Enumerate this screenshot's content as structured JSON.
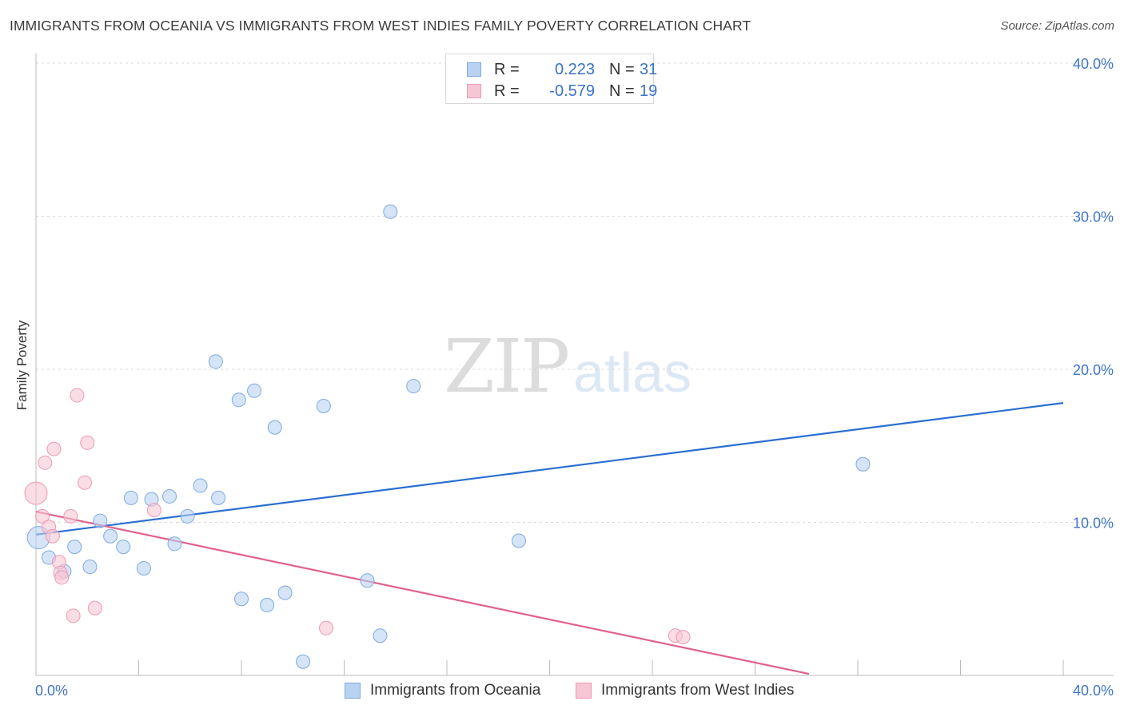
{
  "chart_data": {
    "type": "scatter",
    "title": "IMMIGRANTS FROM OCEANIA VS IMMIGRANTS FROM WEST INDIES FAMILY POVERTY CORRELATION CHART",
    "source": "Source: ZipAtlas.com",
    "ylabel": "Family Poverty",
    "xlabel": "",
    "xlim": [
      0,
      40
    ],
    "ylim": [
      0,
      40
    ],
    "x_tick_labels": [
      "0.0%",
      "40.0%"
    ],
    "y_ticks": [
      10,
      20,
      30,
      40
    ],
    "y_tick_labels": [
      "10.0%",
      "20.0%",
      "30.0%",
      "40.0%"
    ],
    "grid": true,
    "watermark": {
      "part1": "ZIP",
      "part2": "atlas"
    },
    "legend_stats": [
      {
        "r_label": "R =",
        "r_value": "0.223",
        "n_label": "N =",
        "n_value": "31"
      },
      {
        "r_label": "R =",
        "r_value": "-0.579",
        "n_label": "N =",
        "n_value": "19"
      }
    ],
    "series": [
      {
        "name": "Immigrants from Oceania",
        "fill": "#b9d2f2",
        "stroke": "#7eaae0",
        "line_color": "#2a6fd1",
        "trend": {
          "x0": 0,
          "y0": 9.2,
          "x1": 40,
          "y1": 17.8
        },
        "points": [
          {
            "x": 0.1,
            "y": 9.0,
            "big": true
          },
          {
            "x": 0.5,
            "y": 7.7
          },
          {
            "x": 1.1,
            "y": 6.8
          },
          {
            "x": 1.5,
            "y": 8.4
          },
          {
            "x": 2.1,
            "y": 7.1
          },
          {
            "x": 2.5,
            "y": 10.1
          },
          {
            "x": 2.9,
            "y": 9.1
          },
          {
            "x": 3.4,
            "y": 8.4
          },
          {
            "x": 3.7,
            "y": 11.6
          },
          {
            "x": 4.2,
            "y": 7.0
          },
          {
            "x": 4.5,
            "y": 11.5
          },
          {
            "x": 5.2,
            "y": 11.7
          },
          {
            "x": 5.4,
            "y": 8.6
          },
          {
            "x": 5.9,
            "y": 10.4
          },
          {
            "x": 6.4,
            "y": 12.4
          },
          {
            "x": 7.0,
            "y": 20.5
          },
          {
            "x": 7.1,
            "y": 11.6
          },
          {
            "x": 7.9,
            "y": 18.0
          },
          {
            "x": 8.0,
            "y": 5.0
          },
          {
            "x": 8.5,
            "y": 18.6
          },
          {
            "x": 9.0,
            "y": 4.6
          },
          {
            "x": 9.3,
            "y": 16.2
          },
          {
            "x": 9.7,
            "y": 5.4
          },
          {
            "x": 10.4,
            "y": 0.9
          },
          {
            "x": 11.2,
            "y": 17.6
          },
          {
            "x": 12.9,
            "y": 6.2
          },
          {
            "x": 13.4,
            "y": 2.6
          },
          {
            "x": 13.8,
            "y": 30.3
          },
          {
            "x": 14.7,
            "y": 18.9
          },
          {
            "x": 18.8,
            "y": 8.8
          },
          {
            "x": 32.2,
            "y": 13.8
          }
        ]
      },
      {
        "name": "Immigrants from West Indies",
        "fill": "#f7c6d4",
        "stroke": "#ee9ab3",
        "line_color": "#e0618e",
        "trend": {
          "x0": 0,
          "y0": 10.7,
          "x1": 30.1,
          "y1": 0.1
        },
        "points": [
          {
            "x": 0.0,
            "y": 11.9,
            "big": true
          },
          {
            "x": 0.25,
            "y": 10.4
          },
          {
            "x": 0.35,
            "y": 13.9
          },
          {
            "x": 0.5,
            "y": 9.7
          },
          {
            "x": 0.65,
            "y": 9.1
          },
          {
            "x": 0.7,
            "y": 14.8
          },
          {
            "x": 0.9,
            "y": 7.4
          },
          {
            "x": 0.95,
            "y": 6.7
          },
          {
            "x": 1.0,
            "y": 6.4
          },
          {
            "x": 1.35,
            "y": 10.4
          },
          {
            "x": 1.45,
            "y": 3.9
          },
          {
            "x": 1.6,
            "y": 18.3
          },
          {
            "x": 1.9,
            "y": 12.6
          },
          {
            "x": 2.0,
            "y": 15.2
          },
          {
            "x": 2.3,
            "y": 4.4
          },
          {
            "x": 4.6,
            "y": 10.8
          },
          {
            "x": 11.3,
            "y": 3.1
          },
          {
            "x": 24.9,
            "y": 2.6
          },
          {
            "x": 25.2,
            "y": 2.5
          }
        ]
      }
    ]
  }
}
